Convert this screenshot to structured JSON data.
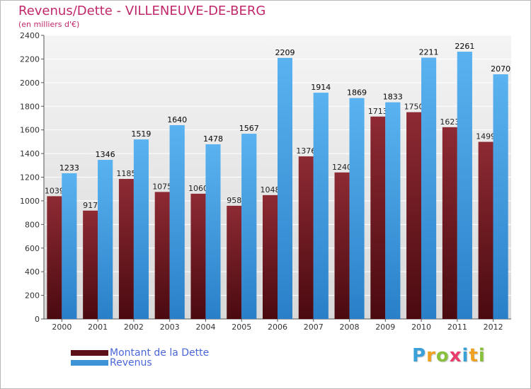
{
  "title": "Revenus/Dette - VILLENEUVE-DE-BERG",
  "subtitle": "(en milliers d'€)",
  "legend": {
    "position": "bottom-left",
    "items": [
      {
        "label": "Montant de la Dette",
        "color": "#7a1c24"
      },
      {
        "label": "Revenus",
        "color": "#4aa3e6"
      }
    ]
  },
  "logo": {
    "letters": [
      {
        "ch": "P",
        "color": "#3aa0d8"
      },
      {
        "ch": "r",
        "color": "#f0a020"
      },
      {
        "ch": "o",
        "color": "#88c03c"
      },
      {
        "ch": "x",
        "color": "#e83c6c"
      },
      {
        "ch": "i",
        "color": "#3aa0d8"
      },
      {
        "ch": "t",
        "color": "#f0a020"
      },
      {
        "ch": "i",
        "color": "#88c03c"
      }
    ]
  },
  "chart_data": {
    "type": "bar",
    "categories": [
      "2000",
      "2001",
      "2002",
      "2003",
      "2004",
      "2005",
      "2006",
      "2007",
      "2008",
      "2009",
      "2010",
      "2011",
      "2012"
    ],
    "series": [
      {
        "name": "Montant de la Dette",
        "color": "#7a1c24",
        "values": [
          1039,
          917,
          1185,
          1075,
          1060,
          958,
          1048,
          1376,
          1240,
          1713,
          1750,
          1623,
          1499
        ],
        "labels": [
          "1039",
          "917",
          "1185",
          "1075",
          "1060",
          "958",
          "1048",
          "1376",
          "1240",
          "1713",
          "1750",
          "1623",
          "1499"
        ]
      },
      {
        "name": "Revenus",
        "color": "#4aa3e6",
        "values": [
          1233,
          1346,
          1519,
          1640,
          1478,
          1567,
          2209,
          1914,
          1869,
          1833,
          2211,
          2261,
          2070
        ],
        "labels": [
          "1233",
          "1346",
          "1519",
          "1640",
          "1478",
          "1567",
          "2209",
          "1914",
          "1869",
          "1833",
          "2211",
          "2261",
          "2070"
        ]
      }
    ],
    "ylim": [
      0,
      2400
    ],
    "yticks": [
      0,
      200,
      400,
      600,
      800,
      1000,
      1200,
      1400,
      1600,
      1800,
      2000,
      2200,
      2400
    ],
    "grid": true
  }
}
